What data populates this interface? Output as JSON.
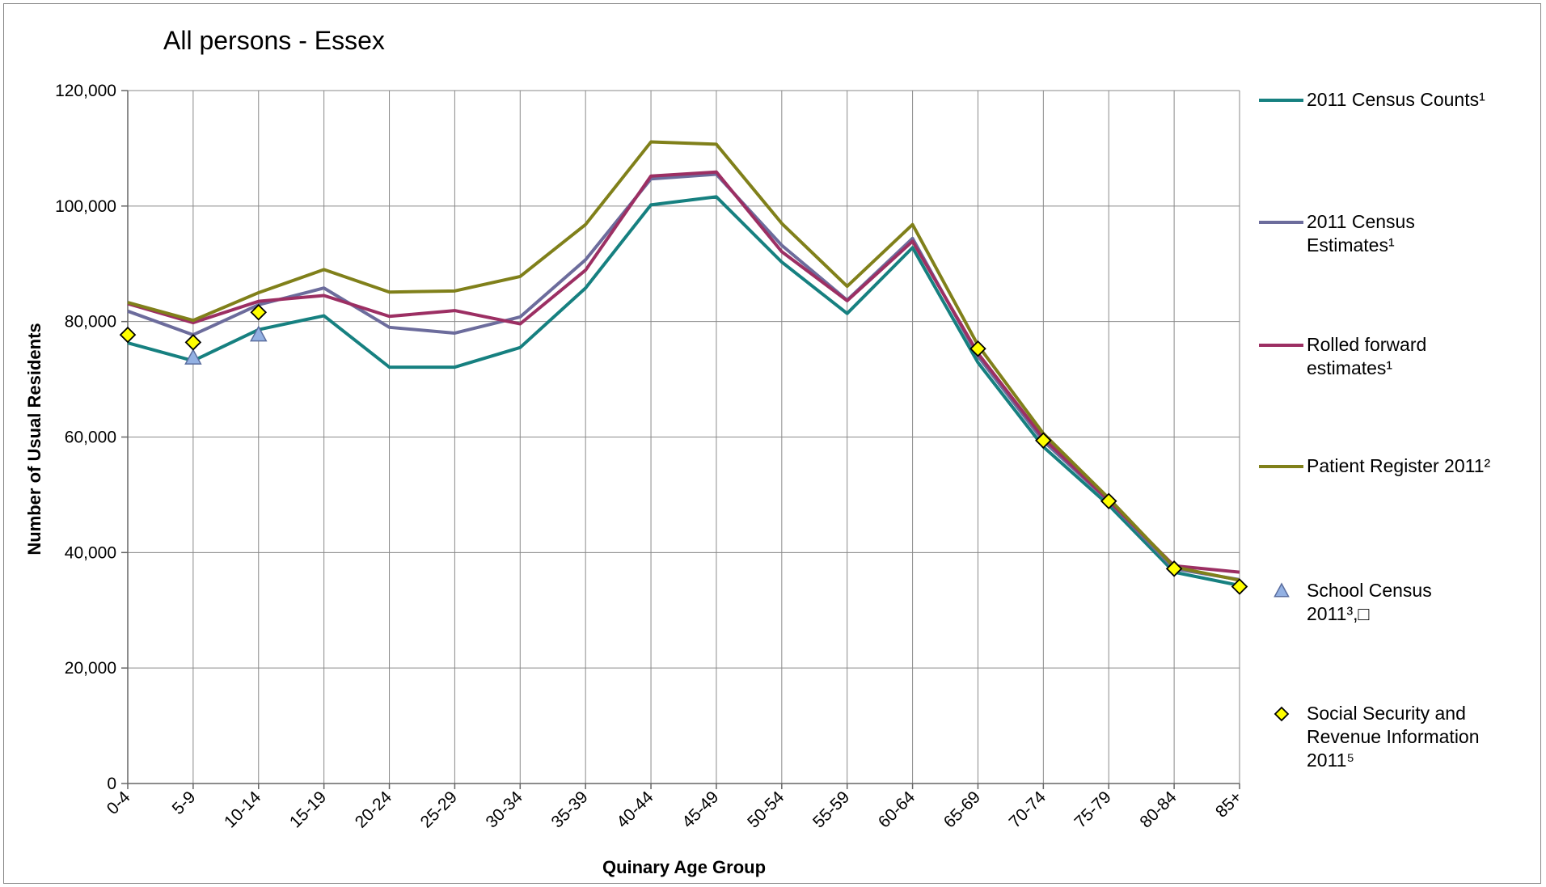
{
  "chart_data": {
    "type": "line",
    "title": "All persons - Essex",
    "xlabel": "Quinary Age Group",
    "ylabel": "Number of Usual Residents",
    "ylim": [
      0,
      120000
    ],
    "yticks": [
      0,
      20000,
      40000,
      60000,
      80000,
      100000,
      120000
    ],
    "ytick_labels": [
      "0",
      "20,000",
      "40,000",
      "60,000",
      "80,000",
      "100,000",
      "120,000"
    ],
    "grid": true,
    "legend_position": "right",
    "categories": [
      "0-4",
      "5-9",
      "10-14",
      "15-19",
      "20-24",
      "25-29",
      "30-34",
      "35-39",
      "40-44",
      "45-49",
      "50-54",
      "55-59",
      "60-64",
      "65-69",
      "70-74",
      "75-79",
      "80-84",
      "85+"
    ],
    "series": [
      {
        "name": "2011 Census Counts¹",
        "kind": "line",
        "color": "#168080",
        "legend_lines": [
          "2011 Census Counts¹"
        ],
        "values": [
          76300,
          73200,
          78600,
          81000,
          72100,
          72100,
          75500,
          85800,
          100200,
          101600,
          90300,
          81400,
          92800,
          72900,
          58300,
          48200,
          36600,
          34300
        ]
      },
      {
        "name": "2011 Census Estimates¹",
        "kind": "line",
        "color": "#6c6c9c",
        "legend_lines": [
          "2011 Census",
          "Estimates¹"
        ],
        "values": [
          81800,
          77700,
          82900,
          85800,
          79000,
          78000,
          80800,
          90700,
          104700,
          105500,
          93200,
          83700,
          94400,
          74000,
          59300,
          48900,
          37200,
          35300
        ]
      },
      {
        "name": "Rolled forward estimates¹",
        "kind": "line",
        "color": "#9c2f63",
        "legend_lines": [
          "Rolled forward",
          "estimates¹"
        ],
        "values": [
          83100,
          79800,
          83500,
          84500,
          80900,
          81900,
          79600,
          88900,
          105200,
          105900,
          92100,
          83600,
          93900,
          74500,
          59800,
          49000,
          37700,
          36600
        ]
      },
      {
        "name": "Patient Register 2011²",
        "kind": "line",
        "color": "#80801a",
        "legend_lines": [
          "Patient Register 2011²"
        ],
        "values": [
          83300,
          80200,
          85000,
          89000,
          85100,
          85300,
          87800,
          96800,
          111100,
          110700,
          97000,
          86100,
          96800,
          75900,
          60600,
          49400,
          37500,
          35200
        ]
      },
      {
        "name": "School Census 2011³,⁴",
        "kind": "marker",
        "marker": "triangle",
        "color": "#93b1e3",
        "legend_lines": [
          "School Census",
          "2011³,□"
        ],
        "values": [
          null,
          73700,
          77700,
          null,
          null,
          null,
          null,
          null,
          null,
          null,
          null,
          null,
          null,
          null,
          null,
          null,
          null,
          null
        ]
      },
      {
        "name": "Social Security and Revenue Information 2011⁵",
        "kind": "marker",
        "marker": "diamond",
        "color": "#ffff00",
        "legend_lines": [
          "Social Security and",
          "Revenue Information",
          "2011⁵"
        ],
        "values": [
          77700,
          76400,
          81600,
          null,
          null,
          null,
          null,
          null,
          null,
          null,
          null,
          null,
          null,
          75300,
          59400,
          48900,
          37200,
          34100
        ]
      }
    ]
  }
}
